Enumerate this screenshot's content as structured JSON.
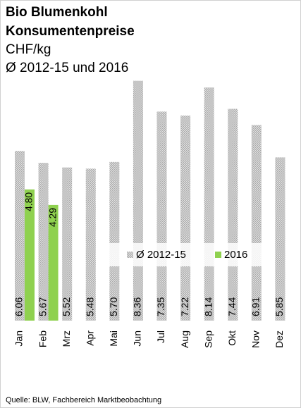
{
  "chart_data": {
    "type": "bar",
    "title": "Bio Blumenkohl",
    "subtitle": "Konsumentenpreise",
    "unit": "CHF/kg",
    "note": "Ø 2012-15 und 2016",
    "source": "Quelle: BLW, Fachbereich Marktbeobachtung",
    "categories": [
      "Jan",
      "Feb",
      "Mrz",
      "Apr",
      "Mai",
      "Jun",
      "Jul",
      "Aug",
      "Sep",
      "Okt",
      "Nov",
      "Dez"
    ],
    "series": [
      {
        "name": "Ø 2012-15",
        "color": "#c8c8c8",
        "values": [
          6.06,
          5.67,
          5.52,
          5.48,
          5.7,
          8.36,
          7.35,
          7.22,
          8.14,
          7.44,
          6.91,
          5.85
        ],
        "value_labels": [
          "6.06",
          "5.67",
          "5.52",
          "5.48",
          "5.70",
          "8.36",
          "7.35",
          "7.22",
          "8.14",
          "7.44",
          "6.91",
          "5.85"
        ]
      },
      {
        "name": "2016",
        "color": "#8fd14f",
        "values": [
          4.8,
          4.29,
          null,
          null,
          null,
          null,
          null,
          null,
          null,
          null,
          null,
          null
        ],
        "value_labels": [
          "4.80",
          "4.29",
          null,
          null,
          null,
          null,
          null,
          null,
          null,
          null,
          null,
          null
        ]
      }
    ],
    "ylim": [
      0.5,
      8.5
    ],
    "legend": "center"
  }
}
